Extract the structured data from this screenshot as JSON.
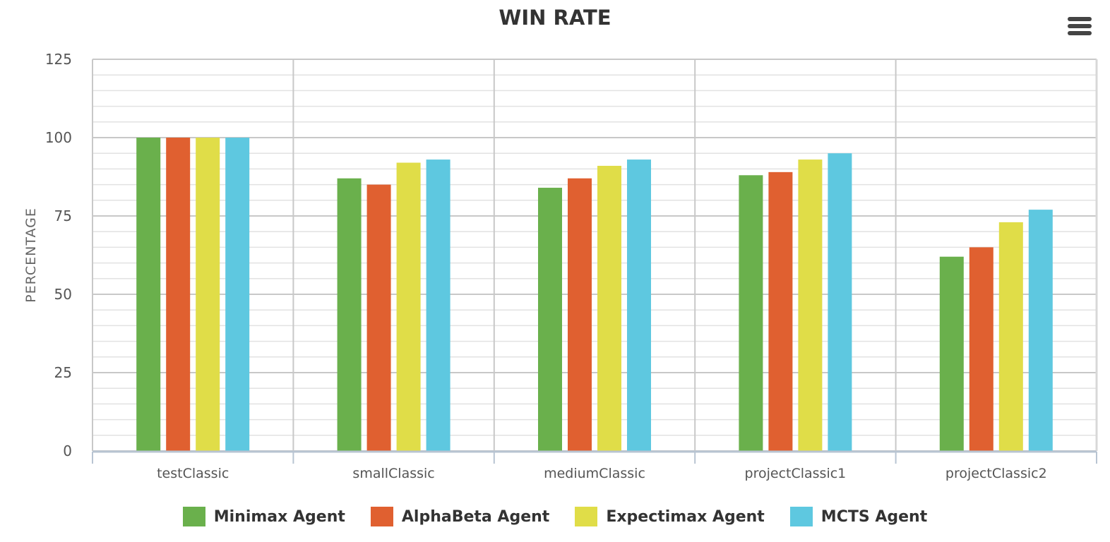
{
  "title": "WIN RATE",
  "menu_icon": "hamburger-menu-icon",
  "chart_data": {
    "type": "bar",
    "title": "WIN RATE",
    "xlabel": "",
    "ylabel": "PERCENTAGE",
    "ylim": [
      0,
      125
    ],
    "yticks": [
      0,
      25,
      50,
      75,
      100,
      125
    ],
    "grid": true,
    "legend_position": "bottom",
    "categories": [
      "testClassic",
      "smallClassic",
      "mediumClassic",
      "projectClassic1",
      "projectClassic2"
    ],
    "series": [
      {
        "name": "Minimax Agent",
        "color": "#6ab04c",
        "values": [
          100,
          87,
          84,
          88,
          62
        ]
      },
      {
        "name": "AlphaBeta Agent",
        "color": "#e06030",
        "values": [
          100,
          85,
          87,
          89,
          65
        ]
      },
      {
        "name": "Expectimax Agent",
        "color": "#e0dd48",
        "values": [
          100,
          92,
          91,
          93,
          73
        ]
      },
      {
        "name": "MCTS Agent",
        "color": "#5ec8e0",
        "values": [
          100,
          93,
          93,
          95,
          77
        ]
      }
    ]
  }
}
